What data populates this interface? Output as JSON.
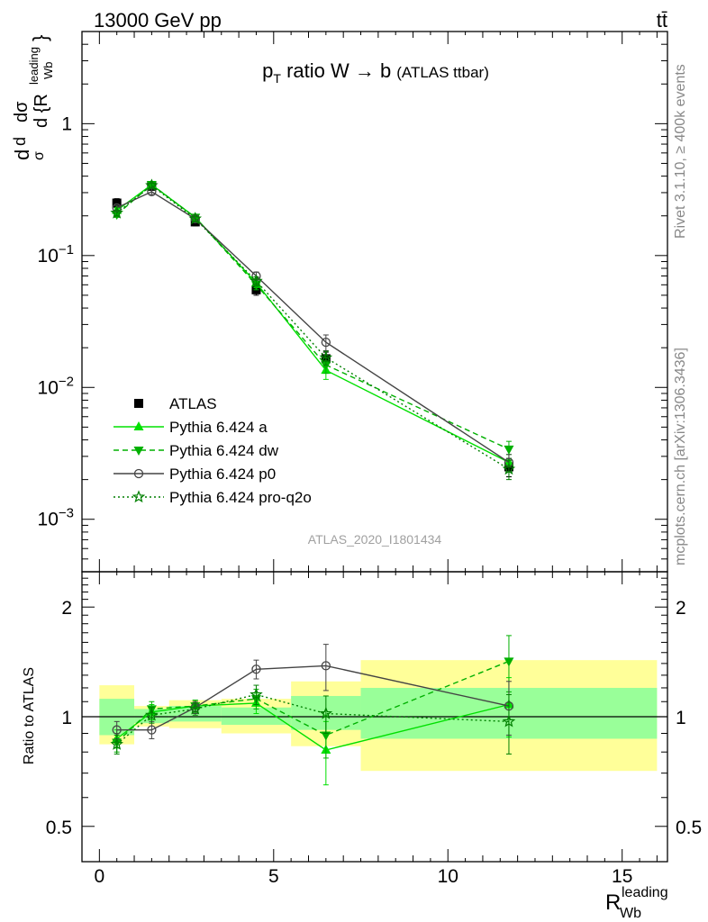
{
  "header": {
    "energy_label": "13000 GeV pp",
    "process_label": "tt̄"
  },
  "side_labels": {
    "rivet": "Rivet 3.1.10, ≥ 400k events",
    "mcplots": "mcplots.cern.ch [arXiv:1306.3436]"
  },
  "analysis_id": "ATLAS_2020_I1801434",
  "chart_data": [
    {
      "type": "scatter",
      "title_main": "p",
      "title_sub": "T",
      "title_rest": " ratio W → b",
      "title_small": "(ATLAS ttbar)",
      "y_axis_label": "dσ/d{R_Wb^leading} · 1/σ",
      "y_scale": "log",
      "ylim": [
        0.0004,
        5
      ],
      "xlim": [
        -0.5,
        16.3
      ],
      "y_ticks": [
        {
          "v": 1,
          "label": "1"
        },
        {
          "v": 0.1,
          "label": "10",
          "exp": "−1"
        },
        {
          "v": 0.01,
          "label": "10",
          "exp": "−2"
        },
        {
          "v": 0.001,
          "label": "10",
          "exp": "−3"
        }
      ],
      "legend_position": "lower-left",
      "series": [
        {
          "name": "ATLAS",
          "color": "#000000",
          "marker": "square",
          "line": "none",
          "x": [
            0.5,
            1.5,
            2.75,
            4.5,
            6.5,
            11.75
          ],
          "y": [
            0.25,
            0.335,
            0.18,
            0.055,
            0.0165,
            0.0025
          ],
          "err": [
            0.02,
            0.02,
            0.012,
            0.005,
            0.002,
            0.0004
          ]
        },
        {
          "name": "Pythia 6.424 a",
          "color": "#00e000",
          "marker": "triangle-up",
          "line": "solid",
          "x": [
            0.5,
            1.5,
            2.75,
            4.5,
            6.5,
            11.75
          ],
          "y": [
            0.22,
            0.345,
            0.195,
            0.062,
            0.0135,
            0.0027
          ],
          "err": [
            0.01,
            0.015,
            0.008,
            0.005,
            0.002,
            0.0004
          ]
        },
        {
          "name": "Pythia 6.424 dw",
          "color": "#00b000",
          "marker": "triangle-down",
          "line": "dashed",
          "x": [
            0.5,
            1.5,
            2.75,
            4.5,
            6.5,
            11.75
          ],
          "y": [
            0.205,
            0.345,
            0.195,
            0.06,
            0.0148,
            0.0034
          ],
          "err": [
            0.01,
            0.015,
            0.008,
            0.005,
            0.002,
            0.0005
          ]
        },
        {
          "name": "Pythia 6.424 p0",
          "color": "#444444",
          "marker": "circle-open",
          "line": "solid",
          "x": [
            0.5,
            1.5,
            2.75,
            4.5,
            6.5,
            11.75
          ],
          "y": [
            0.23,
            0.305,
            0.19,
            0.07,
            0.022,
            0.0027
          ],
          "err": [
            0.01,
            0.015,
            0.008,
            0.005,
            0.003,
            0.0004
          ]
        },
        {
          "name": "Pythia 6.424 pro-q2o",
          "color": "#007f00",
          "marker": "star-open",
          "line": "dotted",
          "x": [
            0.5,
            1.5,
            2.75,
            4.5,
            6.5,
            11.75
          ],
          "y": [
            0.21,
            0.34,
            0.19,
            0.064,
            0.0168,
            0.0024
          ],
          "err": [
            0.01,
            0.015,
            0.008,
            0.005,
            0.002,
            0.0004
          ]
        }
      ]
    },
    {
      "type": "scatter",
      "y_axis_label": "Ratio to ATLAS",
      "x_axis_label": "R",
      "x_axis_sub": "Wb",
      "x_axis_sup": "leading",
      "y_scale": "log",
      "ylim": [
        0.4,
        2.5
      ],
      "xlim": [
        -0.5,
        16.3
      ],
      "x_ticks": [
        0,
        5,
        10,
        15
      ],
      "y_ticks": [
        {
          "v": 2,
          "label": "2"
        },
        {
          "v": 1,
          "label": "1"
        },
        {
          "v": 0.5,
          "label": "0.5"
        }
      ],
      "uncertainty_bands": [
        {
          "x0": 0,
          "x1": 1,
          "inner": [
            0.89,
            1.12
          ],
          "outer": [
            0.84,
            1.22
          ]
        },
        {
          "x0": 1,
          "x1": 2,
          "inner": [
            0.96,
            1.05
          ],
          "outer": [
            0.94,
            1.07
          ]
        },
        {
          "x0": 2,
          "x1": 3.5,
          "inner": [
            0.97,
            1.07
          ],
          "outer": [
            0.93,
            1.11
          ]
        },
        {
          "x0": 3.5,
          "x1": 5.5,
          "inner": [
            0.95,
            1.06
          ],
          "outer": [
            0.9,
            1.12
          ]
        },
        {
          "x0": 5.5,
          "x1": 7.5,
          "inner": [
            0.92,
            1.14
          ],
          "outer": [
            0.83,
            1.25
          ]
        },
        {
          "x0": 7.5,
          "x1": 16,
          "inner": [
            0.87,
            1.2
          ],
          "outer": [
            0.71,
            1.43
          ]
        }
      ],
      "series": [
        {
          "name": "Pythia 6.424 a",
          "color": "#00e000",
          "marker": "triangle-up",
          "line": "solid",
          "x": [
            0.5,
            1.5,
            2.75,
            4.5,
            6.5,
            11.75
          ],
          "y": [
            0.87,
            1.03,
            1.07,
            1.09,
            0.81,
            1.08
          ],
          "err": [
            0.05,
            0.05,
            0.04,
            0.07,
            0.16,
            0.2
          ]
        },
        {
          "name": "Pythia 6.424 dw",
          "color": "#00b000",
          "marker": "triangle-down",
          "line": "dashed",
          "x": [
            0.5,
            1.5,
            2.75,
            4.5,
            6.5,
            11.75
          ],
          "y": [
            0.85,
            1.05,
            1.07,
            1.12,
            0.89,
            1.42
          ],
          "err": [
            0.05,
            0.05,
            0.04,
            0.07,
            0.12,
            0.25
          ]
        },
        {
          "name": "Pythia 6.424 p0",
          "color": "#444444",
          "marker": "circle-open",
          "line": "solid",
          "x": [
            0.5,
            1.5,
            2.75,
            4.5,
            6.5,
            11.75
          ],
          "y": [
            0.92,
            0.92,
            1.06,
            1.35,
            1.38,
            1.07
          ],
          "err": [
            0.05,
            0.05,
            0.04,
            0.08,
            0.2,
            0.18
          ]
        },
        {
          "name": "Pythia 6.424 pro-q2o",
          "color": "#007f00",
          "marker": "star-open",
          "line": "dotted",
          "x": [
            0.5,
            1.5,
            2.75,
            4.5,
            6.5,
            11.75
          ],
          "y": [
            0.84,
            1.01,
            1.05,
            1.15,
            1.02,
            0.97
          ],
          "err": [
            0.05,
            0.05,
            0.04,
            0.07,
            0.12,
            0.18
          ]
        }
      ]
    }
  ]
}
